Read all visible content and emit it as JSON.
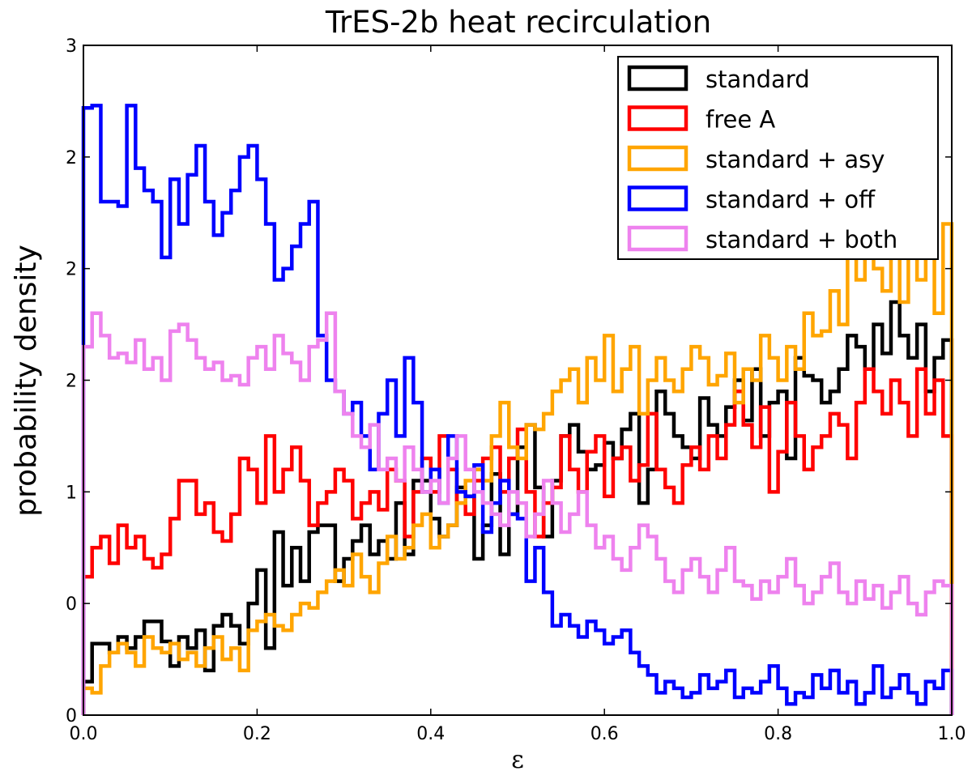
{
  "chart_data": {
    "type": "histogram-step",
    "title": "TrES-2b heat recirculation",
    "xlabel": "ε",
    "ylabel": "probability density",
    "xlim": [
      0.0,
      1.0
    ],
    "ylim": [
      0.0,
      3.0
    ],
    "xtick_labels": [
      {
        "value": 0.0,
        "label": "0.0"
      },
      {
        "value": 0.2,
        "label": "0.2"
      },
      {
        "value": 0.4,
        "label": "0.4"
      },
      {
        "value": 0.6,
        "label": "0.6"
      },
      {
        "value": 0.8,
        "label": "0.8"
      },
      {
        "value": 1.0,
        "label": "1.0"
      }
    ],
    "ytick_labels": [
      {
        "value": 0.0,
        "label": "0"
      },
      {
        "value": 0.5,
        "label": "0"
      },
      {
        "value": 1.0,
        "label": "1"
      },
      {
        "value": 1.5,
        "label": "2"
      },
      {
        "value": 2.0,
        "label": "2"
      },
      {
        "value": 2.5,
        "label": "2"
      },
      {
        "value": 3.0,
        "label": "3"
      }
    ],
    "legend_position": "top-right",
    "bins": 100,
    "series": [
      {
        "name": "standard",
        "color": "#000000",
        "values": [
          0.15,
          0.32,
          0.32,
          0.28,
          0.35,
          0.3,
          0.35,
          0.42,
          0.42,
          0.33,
          0.22,
          0.35,
          0.3,
          0.38,
          0.2,
          0.4,
          0.45,
          0.4,
          0.32,
          0.5,
          0.65,
          0.3,
          0.82,
          0.58,
          0.75,
          0.6,
          0.82,
          0.85,
          0.85,
          0.6,
          0.7,
          0.78,
          0.85,
          0.72,
          0.78,
          0.7,
          0.95,
          0.72,
          1.05,
          1.05,
          0.88,
          0.8,
          0.85,
          1.02,
          0.98,
          0.7,
          0.85,
          1.08,
          0.72,
          0.9,
          1.2,
          1.3,
          1.02,
          0.8,
          1.05,
          1.25,
          1.3,
          1.18,
          1.1,
          1.12,
          1.22,
          1.15,
          1.28,
          1.35,
          0.95,
          1.1,
          1.45,
          1.35,
          1.25,
          1.2,
          1.15,
          1.42,
          1.3,
          1.25,
          1.38,
          1.5,
          1.32,
          1.55,
          1.25,
          1.4,
          1.45,
          1.15,
          1.6,
          1.52,
          1.5,
          1.4,
          1.45,
          1.55,
          1.7,
          1.65,
          1.55,
          1.75,
          1.62,
          1.85,
          1.7,
          1.6,
          1.75,
          1.45,
          1.6,
          1.68
        ]
      },
      {
        "name": "free A",
        "color": "#ff0000",
        "values": [
          0.62,
          0.75,
          0.8,
          0.68,
          0.85,
          0.75,
          0.8,
          0.7,
          0.66,
          0.72,
          0.88,
          1.05,
          1.05,
          0.9,
          0.95,
          0.82,
          0.78,
          0.9,
          1.15,
          1.1,
          0.95,
          1.25,
          1.0,
          1.1,
          1.2,
          1.05,
          0.85,
          0.95,
          1.0,
          1.1,
          1.05,
          0.88,
          0.95,
          1.0,
          0.92,
          1.1,
          1.05,
          0.8,
          1.0,
          1.15,
          1.0,
          1.25,
          1.1,
          0.95,
          0.9,
          1.05,
          1.15,
          1.2,
          1.0,
          1.15,
          1.28,
          1.0,
          0.8,
          0.95,
          1.02,
          1.25,
          1.1,
          1.0,
          1.18,
          1.25,
          0.98,
          1.15,
          1.2,
          1.05,
          1.12,
          1.35,
          1.1,
          1.02,
          0.95,
          1.12,
          1.2,
          1.1,
          1.25,
          1.15,
          1.3,
          1.45,
          1.3,
          1.2,
          1.38,
          1.0,
          1.18,
          1.4,
          1.25,
          1.1,
          1.2,
          1.25,
          1.35,
          1.3,
          1.15,
          1.4,
          1.55,
          1.45,
          1.35,
          1.5,
          1.4,
          1.25,
          1.55,
          1.35,
          1.5,
          1.25
        ]
      },
      {
        "name": "standard + asy",
        "color": "#ffa500",
        "values": [
          0.12,
          0.1,
          0.22,
          0.28,
          0.32,
          0.28,
          0.22,
          0.35,
          0.3,
          0.28,
          0.32,
          0.25,
          0.28,
          0.22,
          0.3,
          0.35,
          0.25,
          0.3,
          0.2,
          0.38,
          0.42,
          0.45,
          0.4,
          0.38,
          0.45,
          0.5,
          0.48,
          0.55,
          0.6,
          0.65,
          0.58,
          0.72,
          0.62,
          0.55,
          0.68,
          0.8,
          0.7,
          0.75,
          0.85,
          0.9,
          0.75,
          0.8,
          0.85,
          0.95,
          1.05,
          1.1,
          1.05,
          1.25,
          1.4,
          1.2,
          1.15,
          1.3,
          1.28,
          1.35,
          1.45,
          1.5,
          1.55,
          1.4,
          1.6,
          1.5,
          1.7,
          1.45,
          1.55,
          1.65,
          1.35,
          1.5,
          1.6,
          1.5,
          1.45,
          1.55,
          1.65,
          1.6,
          1.48,
          1.52,
          1.62,
          1.4,
          1.55,
          1.5,
          1.7,
          1.6,
          1.5,
          1.65,
          1.55,
          1.8,
          1.7,
          1.72,
          1.9,
          1.75,
          2.05,
          1.95,
          2.15,
          2.0,
          1.9,
          2.05,
          1.85,
          2.15,
          1.95,
          2.1,
          1.8,
          2.2
        ]
      },
      {
        "name": "standard + off",
        "color": "#0000ff",
        "values": [
          2.72,
          2.73,
          2.3,
          2.3,
          2.28,
          2.73,
          2.45,
          2.35,
          2.3,
          2.05,
          2.4,
          2.2,
          2.42,
          2.55,
          2.3,
          2.15,
          2.25,
          2.35,
          2.5,
          2.55,
          2.4,
          2.2,
          1.95,
          2.0,
          2.1,
          2.2,
          2.3,
          1.7,
          1.5,
          1.45,
          1.35,
          1.4,
          1.25,
          1.1,
          1.35,
          1.5,
          1.25,
          1.6,
          1.4,
          1.0,
          1.1,
          0.95,
          1.25,
          1.0,
          0.98,
          1.12,
          0.82,
          0.95,
          1.05,
          0.9,
          0.88,
          0.6,
          0.75,
          0.55,
          0.4,
          0.45,
          0.4,
          0.35,
          0.42,
          0.38,
          0.32,
          0.35,
          0.38,
          0.28,
          0.22,
          0.18,
          0.1,
          0.15,
          0.12,
          0.08,
          0.1,
          0.18,
          0.12,
          0.15,
          0.2,
          0.08,
          0.12,
          0.1,
          0.15,
          0.22,
          0.12,
          0.05,
          0.1,
          0.08,
          0.18,
          0.12,
          0.2,
          0.1,
          0.15,
          0.05,
          0.1,
          0.22,
          0.08,
          0.12,
          0.18,
          0.1,
          0.05,
          0.15,
          0.12,
          0.2
        ]
      },
      {
        "name": "standard + both",
        "color": "#ee82ee",
        "values": [
          1.65,
          1.8,
          1.7,
          1.6,
          1.62,
          1.58,
          1.68,
          1.55,
          1.6,
          1.5,
          1.72,
          1.75,
          1.68,
          1.6,
          1.55,
          1.58,
          1.5,
          1.52,
          1.48,
          1.6,
          1.65,
          1.55,
          1.7,
          1.62,
          1.58,
          1.5,
          1.65,
          1.68,
          1.8,
          1.45,
          1.35,
          1.25,
          1.2,
          1.3,
          1.1,
          1.15,
          1.05,
          1.2,
          1.1,
          1.0,
          1.05,
          0.95,
          1.15,
          1.25,
          1.1,
          1.0,
          0.95,
          0.9,
          0.85,
          1.0,
          0.95,
          0.8,
          0.9,
          1.05,
          0.95,
          0.82,
          0.9,
          1.0,
          0.85,
          0.75,
          0.8,
          0.7,
          0.65,
          0.75,
          0.85,
          0.8,
          0.7,
          0.6,
          0.55,
          0.65,
          0.7,
          0.62,
          0.55,
          0.65,
          0.75,
          0.6,
          0.58,
          0.52,
          0.6,
          0.55,
          0.62,
          0.7,
          0.58,
          0.5,
          0.55,
          0.62,
          0.68,
          0.55,
          0.5,
          0.6,
          0.52,
          0.58,
          0.48,
          0.55,
          0.62,
          0.5,
          0.45,
          0.55,
          0.6,
          0.58
        ]
      }
    ]
  }
}
